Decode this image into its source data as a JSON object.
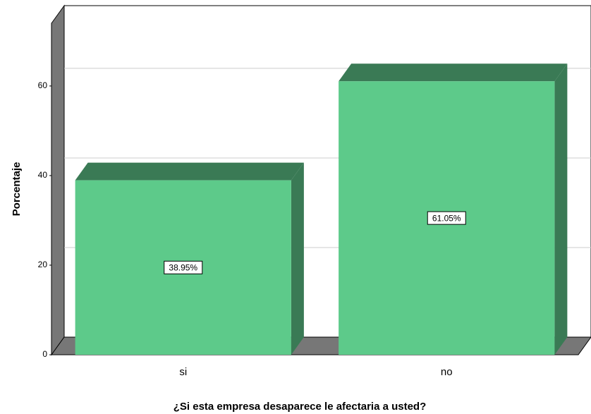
{
  "chart_data": {
    "type": "bar3d",
    "x_label": "¿Si esta empresa desaparece le afectaria a usted?",
    "y_label": "Porcentaje",
    "categories": [
      "si",
      "no"
    ],
    "values": [
      38.95,
      61.05
    ],
    "value_labels": [
      "38.95%",
      "61.05%"
    ],
    "color": "#5dca8a",
    "ylim": [
      0,
      74
    ],
    "yticks": [
      0,
      20,
      40,
      60
    ],
    "grid": true
  }
}
